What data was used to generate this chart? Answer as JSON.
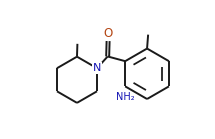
{
  "bg_color": "#ffffff",
  "line_color": "#1a1a1a",
  "bond_lw": 1.4,
  "N_color": "#1414b4",
  "O_color": "#b44614",
  "NH2_color": "#1414b4",
  "figsize": [
    2.15,
    1.39
  ],
  "dpi": 100,
  "xlim": [
    0,
    10
  ],
  "ylim": [
    0,
    6.5
  ]
}
